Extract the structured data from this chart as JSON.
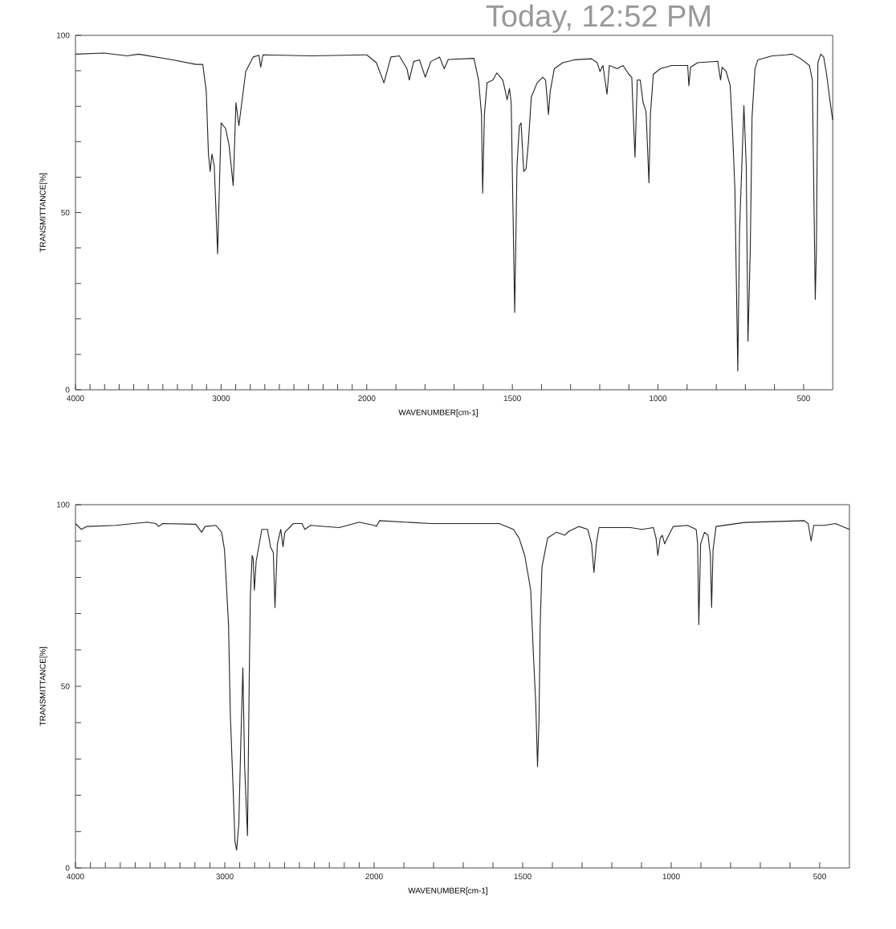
{
  "chart_data": [
    {
      "type": "line",
      "ylabel": "TRANSMITTANCE[%]",
      "xlim": [
        4000,
        2000
      ],
      "ylim": [
        0,
        100
      ],
      "xticks": [
        4000,
        {
          "value": 3900,
          "label": null
        },
        {
          "value": 3800,
          "label": null
        },
        {
          "value": 3700,
          "label": null
        },
        {
          "value": 3600,
          "label": null
        },
        {
          "value": 3500,
          "label": null
        },
        {
          "value": 3400,
          "label": null
        },
        {
          "value": 3300,
          "label": null
        },
        {
          "value": 3200,
          "label": null
        },
        {
          "value": 3100,
          "label": null
        },
        3000,
        {
          "value": 2900,
          "label": null
        },
        {
          "value": 2800,
          "label": null
        },
        {
          "value": 2700,
          "label": null
        },
        {
          "value": 2600,
          "label": null
        },
        {
          "value": 2500,
          "label": null
        },
        {
          "value": 2400,
          "label": null
        },
        {
          "value": 2300,
          "label": null
        },
        {
          "value": 2200,
          "label": null
        },
        {
          "value": 2100,
          "label": null
        },
        2000
      ],
      "yticks": [
        0,
        {
          "value": 10,
          "label": null
        },
        {
          "value": 20,
          "label": null
        },
        {
          "value": 30,
          "label": null
        },
        {
          "value": 40,
          "label": null
        },
        50,
        {
          "value": 60,
          "label": null
        },
        {
          "value": 70,
          "label": null
        },
        {
          "value": 80,
          "label": null
        },
        {
          "value": 90,
          "label": null
        },
        100
      ],
      "x": [
        4000,
        3803,
        3646,
        3567,
        3331,
        3173,
        3126,
        3102,
        3087,
        3075,
        3063,
        3047,
        3024,
        3000,
        2969,
        2945,
        2917,
        2898,
        2878,
        2858,
        2831,
        2780,
        2740,
        2728,
        2713,
        2386,
        2000
      ],
      "series": [
        {
          "color": "#222222",
          "values": [
            94.7,
            95.0,
            94.2,
            94.7,
            93.1,
            91.8,
            91.8,
            84.2,
            66.5,
            61.6,
            66.5,
            63.2,
            38.4,
            75.3,
            73.7,
            68.9,
            57.6,
            81.0,
            74.5,
            81.0,
            89.8,
            93.9,
            94.4,
            91.0,
            94.5,
            94.2,
            94.5
          ]
        }
      ]
    },
    {
      "type": "line",
      "annotations": [
        "Today, 12:52 PM"
      ],
      "xlabel": "WAVENUMBER[cm-1]",
      "xlim": [
        2000,
        400
      ],
      "ylim": [
        0,
        100
      ],
      "tick_labels": "x",
      "xticks": [
        {
          "value": 1900,
          "label": null
        },
        {
          "value": 1800,
          "label": null
        },
        {
          "value": 1700,
          "label": null
        },
        {
          "value": 1600,
          "label": null
        },
        1500,
        {
          "value": 1400,
          "label": null
        },
        {
          "value": 1300,
          "label": null
        },
        {
          "value": 1200,
          "label": null
        },
        {
          "value": 1100,
          "label": null
        },
        1000,
        {
          "value": 900,
          "label": null
        },
        {
          "value": 800,
          "label": null
        },
        {
          "value": 700,
          "label": null
        },
        {
          "value": 600,
          "label": null
        },
        500
      ],
      "x": [
        2000,
        1967,
        1941,
        1917,
        1888,
        1862,
        1854,
        1839,
        1819,
        1799,
        1780,
        1750,
        1734,
        1720,
        1632,
        1616,
        1606,
        1602,
        1596,
        1587,
        1567,
        1553,
        1533,
        1524,
        1518,
        1510,
        1504,
        1492,
        1484,
        1476,
        1470,
        1461,
        1453,
        1445,
        1435,
        1415,
        1396,
        1386,
        1376,
        1370,
        1356,
        1327,
        1287,
        1228,
        1209,
        1199,
        1189,
        1175,
        1167,
        1140,
        1120,
        1100,
        1090,
        1085,
        1079,
        1071,
        1061,
        1051,
        1041,
        1031,
        1026,
        1016,
        992,
        953,
        898,
        894,
        888,
        864,
        795,
        785,
        780,
        766,
        752,
        744,
        736,
        726,
        720,
        705,
        697,
        691,
        683,
        677,
        667,
        657,
        608,
        559,
        539,
        510,
        480,
        470,
        464,
        460,
        456,
        451,
        441,
        431,
        421,
        406,
        400
      ],
      "series": [
        {
          "color": "#222222",
          "values": [
            94.5,
            92.3,
            86.6,
            93.9,
            94.2,
            90.6,
            87.4,
            92.6,
            93.1,
            88.2,
            92.6,
            93.9,
            90.6,
            93.2,
            93.5,
            87.4,
            77.7,
            55.5,
            77.7,
            86.6,
            87.4,
            89.4,
            87.4,
            84.2,
            81.8,
            85.0,
            81.0,
            21.8,
            63.2,
            74.5,
            75.3,
            61.6,
            62.4,
            69.7,
            82.6,
            86.6,
            88.2,
            87.4,
            77.7,
            84.2,
            90.6,
            92.3,
            93.1,
            93.4,
            92.3,
            89.8,
            91.5,
            83.4,
            91.5,
            90.6,
            91.5,
            89.0,
            88.2,
            77.7,
            65.6,
            87.4,
            87.4,
            81.0,
            78.5,
            58.4,
            77.7,
            89.0,
            90.6,
            91.5,
            91.5,
            85.8,
            91.0,
            92.3,
            92.7,
            87.4,
            91.0,
            89.8,
            85.8,
            72.9,
            56.8,
            5.3,
            44.8,
            80.2,
            63.2,
            13.7,
            40.0,
            76.9,
            90.6,
            93.1,
            94.2,
            94.5,
            94.7,
            93.4,
            91.5,
            87.4,
            50.3,
            25.5,
            40.0,
            92.3,
            94.7,
            93.9,
            89.0,
            79.4,
            76.1
          ]
        }
      ]
    },
    {
      "type": "line",
      "ylabel": "TRANSMITTANCE[%]",
      "xlim": [
        4000,
        2000
      ],
      "ylim": [
        0,
        100
      ],
      "xticks": [
        4000,
        {
          "value": 3900,
          "label": null
        },
        {
          "value": 3800,
          "label": null
        },
        {
          "value": 3700,
          "label": null
        },
        {
          "value": 3600,
          "label": null
        },
        {
          "value": 3500,
          "label": null
        },
        {
          "value": 3400,
          "label": null
        },
        {
          "value": 3300,
          "label": null
        },
        {
          "value": 3200,
          "label": null
        },
        {
          "value": 3100,
          "label": null
        },
        3000,
        {
          "value": 2900,
          "label": null
        },
        {
          "value": 2800,
          "label": null
        },
        {
          "value": 2700,
          "label": null
        },
        {
          "value": 2600,
          "label": null
        },
        {
          "value": 2500,
          "label": null
        },
        {
          "value": 2400,
          "label": null
        },
        {
          "value": 2300,
          "label": null
        },
        {
          "value": 2200,
          "label": null
        },
        {
          "value": 2100,
          "label": null
        },
        2000
      ],
      "yticks": [
        0,
        {
          "value": 10,
          "label": null
        },
        {
          "value": 20,
          "label": null
        },
        {
          "value": 30,
          "label": null
        },
        {
          "value": 40,
          "label": null
        },
        50,
        {
          "value": 60,
          "label": null
        },
        {
          "value": 70,
          "label": null
        },
        {
          "value": 80,
          "label": null
        },
        {
          "value": 90,
          "label": null
        },
        100
      ],
      "x": [
        4000,
        3962,
        3923,
        3731,
        3520,
        3462,
        3443,
        3416,
        3194,
        3155,
        3132,
        3059,
        3021,
        3002,
        2975,
        2963,
        2944,
        2932,
        2921,
        2906,
        2894,
        2879,
        2867,
        2848,
        2836,
        2829,
        2817,
        2810,
        2802,
        2790,
        2752,
        2714,
        2694,
        2675,
        2664,
        2648,
        2625,
        2610,
        2598,
        2541,
        2483,
        2464,
        2426,
        2234,
        2099,
        2000
      ],
      "series": [
        {
          "color": "#222222",
          "values": [
            94.8,
            93.2,
            94.0,
            94.3,
            95.2,
            94.8,
            94.0,
            94.8,
            94.6,
            92.4,
            94.0,
            94.3,
            92.4,
            87.6,
            67.0,
            42.2,
            21.6,
            7.3,
            4.9,
            12.1,
            32.7,
            55.1,
            27.9,
            8.9,
            53.3,
            74.9,
            86.0,
            85.2,
            76.5,
            84.4,
            93.2,
            93.2,
            88.4,
            86.8,
            71.7,
            89.2,
            93.2,
            88.4,
            92.4,
            94.8,
            94.8,
            93.2,
            94.3,
            93.7,
            95.2,
            94.3
          ]
        }
      ]
    },
    {
      "type": "line",
      "xlabel": "WAVENUMBER[cm-1]",
      "xlim": [
        2000,
        400
      ],
      "ylim": [
        0,
        100
      ],
      "tick_labels": "x",
      "xticks": [
        {
          "value": 1900,
          "label": null
        },
        {
          "value": 1800,
          "label": null
        },
        {
          "value": 1700,
          "label": null
        },
        {
          "value": 1600,
          "label": null
        },
        1500,
        {
          "value": 1400,
          "label": null
        },
        {
          "value": 1300,
          "label": null
        },
        {
          "value": 1200,
          "label": null
        },
        {
          "value": 1100,
          "label": null
        },
        1000,
        {
          "value": 900,
          "label": null
        },
        {
          "value": 800,
          "label": null
        },
        {
          "value": 700,
          "label": null
        },
        {
          "value": 600,
          "label": null
        },
        500
      ],
      "x": [
        2000,
        1992,
        1982,
        1809,
        1579,
        1531,
        1512,
        1493,
        1473,
        1464,
        1456,
        1450,
        1445,
        1441,
        1435,
        1416,
        1387,
        1358,
        1344,
        1310,
        1281,
        1268,
        1260,
        1252,
        1243,
        1137,
        1099,
        1060,
        1051,
        1045,
        1037,
        1030,
        1022,
        1013,
        993,
        945,
        916,
        911,
        907,
        901,
        888,
        876,
        868,
        864,
        859,
        849,
        753,
        552,
        539,
        529,
        520,
        485,
        447,
        400
      ],
      "series": [
        {
          "color": "#222222",
          "values": [
            94.3,
            94.0,
            95.6,
            94.8,
            94.8,
            93.2,
            90.8,
            86.0,
            76.5,
            59.0,
            45.4,
            27.9,
            40.6,
            67.0,
            82.9,
            90.8,
            92.4,
            91.6,
            92.7,
            94.0,
            93.2,
            89.2,
            81.3,
            89.2,
            93.7,
            93.7,
            93.2,
            93.7,
            90.8,
            86.0,
            90.8,
            91.6,
            89.2,
            90.8,
            94.0,
            94.3,
            93.2,
            89.2,
            67.0,
            89.2,
            92.4,
            91.6,
            86.0,
            71.7,
            87.6,
            94.0,
            95.1,
            95.6,
            94.8,
            90.0,
            94.3,
            94.3,
            94.8,
            93.2
          ]
        }
      ]
    }
  ]
}
